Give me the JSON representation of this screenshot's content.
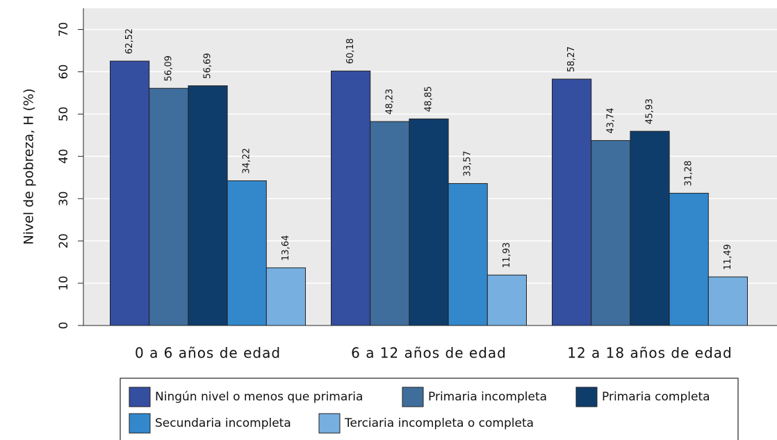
{
  "chart_data": {
    "type": "bar",
    "y_label": "Nivel de pobreza, H (%)",
    "categories": [
      "0 a 6 años de edad",
      "6 a 12 años de edad",
      "12 a 18 años de edad"
    ],
    "series": [
      {
        "name": "Ningún nivel o menos que primaria",
        "color": "#344ea0",
        "values": [
          62.52,
          60.18,
          58.27
        ],
        "value_labels": [
          "62,52",
          "60,18",
          "58,27"
        ]
      },
      {
        "name": "Primaria incompleta",
        "color": "#3f6e9c",
        "values": [
          56.09,
          48.23,
          43.74
        ],
        "value_labels": [
          "56,09",
          "48,23",
          "43,74"
        ]
      },
      {
        "name": "Primaria completa",
        "color": "#0f3d6b",
        "values": [
          56.69,
          48.85,
          45.93
        ],
        "value_labels": [
          "56,69",
          "48,85",
          "45,93"
        ]
      },
      {
        "name": "Secundaria incompleta",
        "color": "#3388cc",
        "values": [
          34.22,
          33.57,
          31.28
        ],
        "value_labels": [
          "34,22",
          "33,57",
          "31,28"
        ]
      },
      {
        "name": "Terciaria incompleta o completa",
        "color": "#76afe0",
        "values": [
          13.64,
          11.93,
          11.49
        ],
        "value_labels": [
          "13,64",
          "11,93",
          "11,49"
        ]
      }
    ],
    "ylim": [
      0,
      75
    ],
    "yticks": [
      0,
      10,
      20,
      30,
      40,
      50,
      60,
      70
    ],
    "grid": true
  }
}
